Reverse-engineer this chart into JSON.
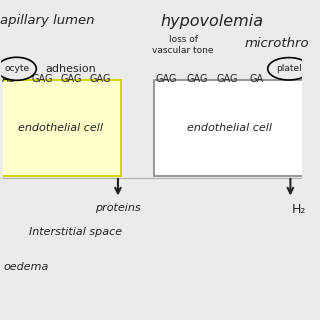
{
  "bg_color": "#ebebeb",
  "title_left": "apillary lumen",
  "title_right": "hypovolemia",
  "left_box_label": "endothelial cell",
  "right_box_label": "endothelial cell",
  "left_box_color": "#ffffcc",
  "right_box_color": "#ffffff",
  "left_box_border": "#d4d400",
  "right_box_border": "#888888",
  "gag_labels": [
    "GAG",
    "GAG",
    "GAG",
    "GAG"
  ],
  "leukocyte_label": "ocyte",
  "adhesion_label": "adhesion",
  "loss_label": "loss of\nvascular tone",
  "microthrombo_label": "microthro",
  "platelet_label": "platel",
  "proteins_label": "proteins",
  "interstitial_label": "Interstitial space",
  "oedema_label": "oedema",
  "h2_label": "H₂",
  "arrow_color": "#222222",
  "text_color": "#222222",
  "font_size_title": 9.5,
  "font_size_labels": 8.0,
  "font_size_gag": 7.0,
  "font_size_hypo": 11.5
}
